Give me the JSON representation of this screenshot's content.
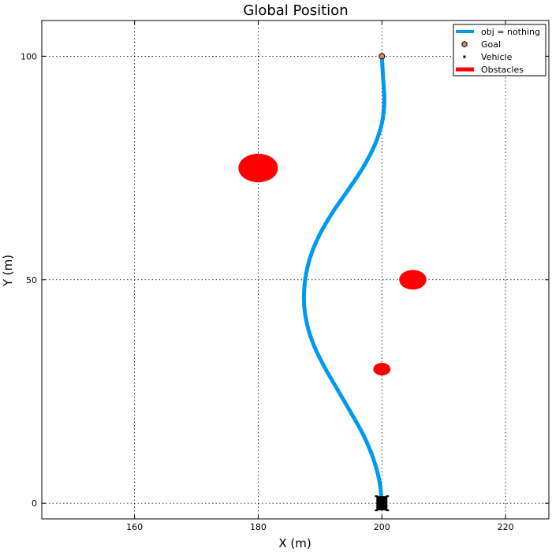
{
  "chart_data": {
    "type": "scatter",
    "title": "Global Position",
    "xlabel": "X (m)",
    "ylabel": "Y (m)",
    "xlim": [
      145,
      227
    ],
    "ylim": [
      -3.5,
      108
    ],
    "xticks": [
      160,
      180,
      200,
      220
    ],
    "yticks": [
      0,
      50,
      100
    ],
    "grid": true,
    "legend_position": "top-right",
    "legend": [
      {
        "label": "obj = nothing",
        "kind": "line",
        "color": "#0099ee"
      },
      {
        "label": "Goal",
        "kind": "hexagon",
        "color": "#e8855a"
      },
      {
        "label": "Vehicle",
        "kind": "square",
        "color": "#000000"
      },
      {
        "label": "Obstacles",
        "kind": "bar",
        "color": "#ff0000"
      }
    ],
    "path": {
      "color": "#0099ee",
      "points": [
        [
          200.0,
          0
        ],
        [
          199.6,
          5
        ],
        [
          198.6,
          10
        ],
        [
          197.1,
          15
        ],
        [
          195.1,
          20
        ],
        [
          193.0,
          25
        ],
        [
          190.9,
          30
        ],
        [
          189.1,
          35
        ],
        [
          187.9,
          40
        ],
        [
          187.4,
          45
        ],
        [
          187.6,
          50
        ],
        [
          188.4,
          55
        ],
        [
          189.9,
          60
        ],
        [
          192.0,
          65
        ],
        [
          194.5,
          70
        ],
        [
          196.9,
          75
        ],
        [
          198.8,
          80
        ],
        [
          200.0,
          85
        ],
        [
          200.4,
          90
        ],
        [
          200.2,
          95
        ],
        [
          200.0,
          100
        ]
      ]
    },
    "goal": {
      "x": 200,
      "y": 100,
      "color": "#e8855a"
    },
    "vehicle": {
      "x": 200,
      "y": 0,
      "color": "#000000"
    },
    "obstacles": [
      {
        "x": 180,
        "y": 75,
        "rx": 3.2,
        "ry": 3.2,
        "color": "#ff0000"
      },
      {
        "x": 205,
        "y": 50,
        "rx": 2.2,
        "ry": 2.2,
        "color": "#ff0000"
      },
      {
        "x": 200,
        "y": 30,
        "rx": 1.4,
        "ry": 1.4,
        "color": "#ff0000"
      }
    ]
  }
}
